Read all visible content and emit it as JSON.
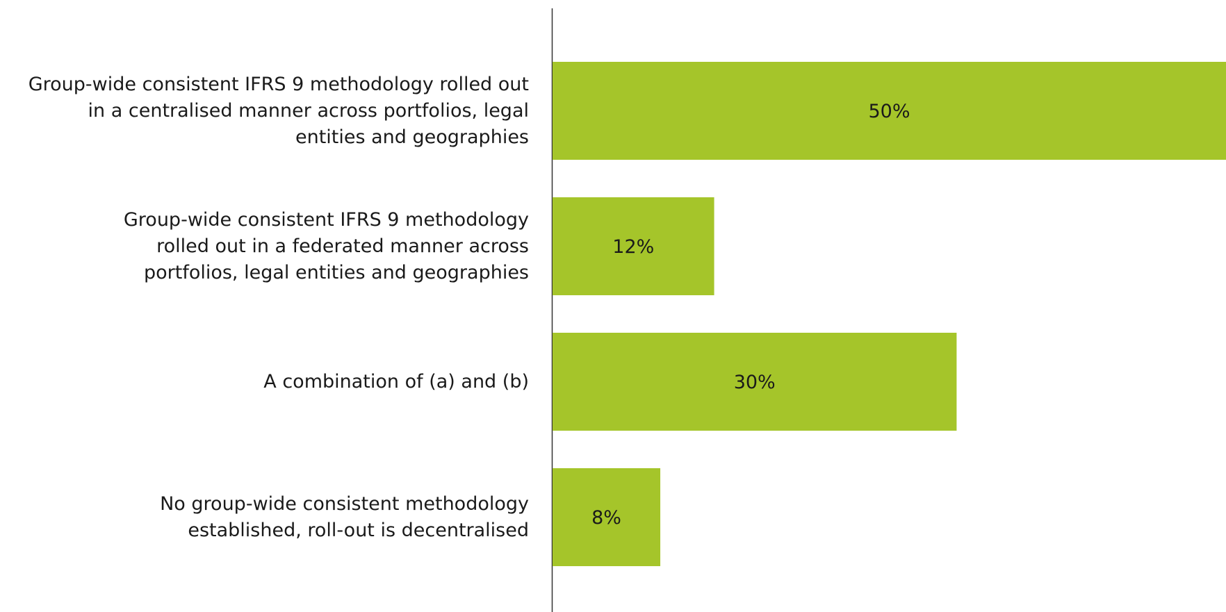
{
  "chart_data": {
    "type": "bar",
    "orientation": "horizontal",
    "categories": [
      "Group-wide consistent IFRS 9 methodology rolled out\nin a centralised manner across portfolios, legal\nentities and geographies",
      "Group-wide consistent IFRS 9 methodology\nrolled out in a federated manner across\nportfolios, legal entities and geographies",
      "A combination of (a) and (b)",
      "No group-wide consistent methodology\nestablished, roll-out is decentralised"
    ],
    "values": [
      50,
      12,
      30,
      8
    ],
    "value_labels": [
      "50%",
      "12%",
      "30%",
      "8%"
    ],
    "color": "#a5c52a"
  }
}
